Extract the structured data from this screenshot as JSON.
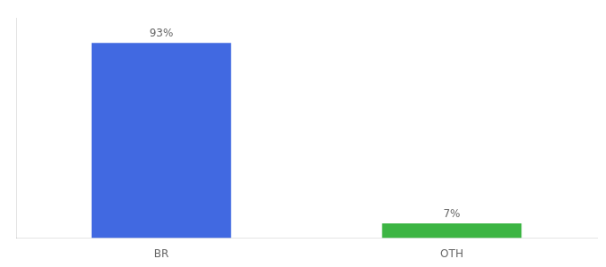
{
  "chart_data": {
    "type": "bar",
    "categories": [
      "BR",
      "OTH"
    ],
    "values": [
      93,
      7
    ],
    "value_labels": [
      "93%",
      "7%"
    ],
    "colors": [
      "#4169e1",
      "#3cb543"
    ],
    "data_labels": true,
    "ylim": [
      0,
      105
    ],
    "grid": false,
    "tick_labels": "x"
  }
}
